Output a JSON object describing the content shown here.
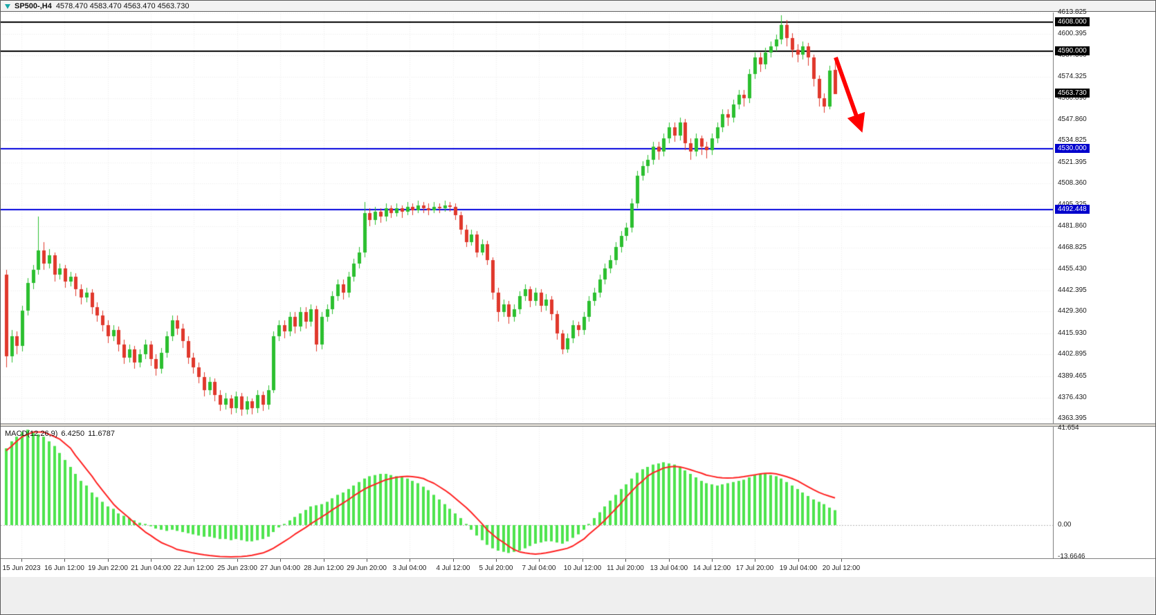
{
  "window": {
    "title_symbol": "SP500-,H4",
    "title_quotes": "4578.470 4583.470 4563.470 4563.730"
  },
  "indicator": {
    "name": "MACD(12,26,9)",
    "main_value": "6.4250",
    "signal_value": "11.6787"
  },
  "colors": {
    "up": "#2bbf2f",
    "down": "#e0382c",
    "histogram": "#4ee44e",
    "signal_line": "#ff2222",
    "grid": "#ececec",
    "zero_line": "#b5b5b5",
    "level_black": "#000000",
    "level_blue": "#0000dd",
    "badge_black": "#000000",
    "badge_blue": "#0000cc",
    "arrow": "#ff0000"
  },
  "price_axis": {
    "labels": [
      "4613.825",
      "4600.395",
      "4587.360",
      "4574.325",
      "4560.890",
      "4547.860",
      "4534.825",
      "4521.395",
      "4508.360",
      "4495.325",
      "4481.860",
      "4468.825",
      "4455.430",
      "4442.395",
      "4429.360",
      "4415.930",
      "4402.895",
      "4389.465",
      "4376.430",
      "4363.395"
    ],
    "badges": [
      {
        "label": "4608.000",
        "price": 4608.0,
        "type": "level"
      },
      {
        "label": "4590.000",
        "price": 4590.0,
        "type": "level"
      },
      {
        "label": "4563.730",
        "price": 4563.73,
        "type": "current"
      },
      {
        "label": "4530.000",
        "price": 4530.0,
        "type": "blue-level"
      },
      {
        "label": "4492.448",
        "price": 4492.448,
        "type": "blue-level"
      }
    ]
  },
  "macd_axis": {
    "labels": [
      {
        "text": "41.654",
        "value": 41.654
      },
      {
        "text": "0.00",
        "value": 0
      },
      {
        "text": "-13.6646",
        "value": -13.6646
      }
    ]
  },
  "time_axis": {
    "labels": [
      "15 Jun 2023",
      "16 Jun 12:00",
      "19 Jun 22:00",
      "21 Jun 04:00",
      "22 Jun 12:00",
      "25 Jun 23:00",
      "27 Jun 04:00",
      "28 Jun 12:00",
      "29 Jun 20:00",
      "3 Jul 04:00",
      "4 Jul 12:00",
      "5 Jul 20:00",
      "7 Jul 04:00",
      "10 Jul 12:00",
      "11 Jul 20:00",
      "13 Jul 04:00",
      "14 Jul 12:00",
      "17 Jul 20:00",
      "19 Jul 04:00",
      "20 Jul 12:00"
    ]
  },
  "chart_data": {
    "type": "candlestick",
    "symbol": "SP500-",
    "timeframe": "H4",
    "price_range": [
      4363.395,
      4613.825
    ],
    "current_price": 4563.73,
    "levels": [
      {
        "price": 4608.0,
        "color": "black"
      },
      {
        "price": 4590.0,
        "color": "black"
      },
      {
        "price": 4530.0,
        "color": "blue"
      },
      {
        "price": 4492.448,
        "color": "blue"
      }
    ],
    "annotation_arrow": {
      "direction": "down-right",
      "color": "#ff0000",
      "meaning": "projected decline"
    },
    "candles_ohlc": [
      [
        4452,
        4455,
        4395,
        4402
      ],
      [
        4402,
        4418,
        4398,
        4414
      ],
      [
        4414,
        4417,
        4403,
        4408
      ],
      [
        4408,
        4433,
        4405,
        4430
      ],
      [
        4430,
        4450,
        4427,
        4447
      ],
      [
        4447,
        4458,
        4443,
        4455
      ],
      [
        4455,
        4488,
        4452,
        4467
      ],
      [
        4467,
        4472,
        4455,
        4459
      ],
      [
        4459,
        4468,
        4456,
        4464
      ],
      [
        4464,
        4466,
        4448,
        4452
      ],
      [
        4452,
        4459,
        4449,
        4456
      ],
      [
        4456,
        4458,
        4444,
        4448
      ],
      [
        4448,
        4454,
        4445,
        4451
      ],
      [
        4451,
        4453,
        4439,
        4443
      ],
      [
        4443,
        4446,
        4434,
        4438
      ],
      [
        4438,
        4444,
        4435,
        4441
      ],
      [
        4441,
        4443,
        4428,
        4432
      ],
      [
        4432,
        4435,
        4423,
        4427
      ],
      [
        4427,
        4430,
        4417,
        4421
      ],
      [
        4421,
        4424,
        4410,
        4414
      ],
      [
        4414,
        4421,
        4411,
        4418
      ],
      [
        4418,
        4420,
        4405,
        4409
      ],
      [
        4409,
        4412,
        4397,
        4401
      ],
      [
        4401,
        4409,
        4398,
        4406
      ],
      [
        4406,
        4408,
        4394,
        4398
      ],
      [
        4398,
        4406,
        4395,
        4403
      ],
      [
        4403,
        4412,
        4400,
        4409
      ],
      [
        4409,
        4411,
        4396,
        4400
      ],
      [
        4400,
        4403,
        4390,
        4394
      ],
      [
        4394,
        4407,
        4391,
        4404
      ],
      [
        4404,
        4417,
        4401,
        4414
      ],
      [
        4414,
        4427,
        4411,
        4424
      ],
      [
        4424,
        4427,
        4415,
        4419
      ],
      [
        4419,
        4422,
        4407,
        4411
      ],
      [
        4411,
        4414,
        4397,
        4401
      ],
      [
        4401,
        4404,
        4391,
        4395
      ],
      [
        4395,
        4398,
        4385,
        4389
      ],
      [
        4389,
        4392,
        4377,
        4381
      ],
      [
        4381,
        4389,
        4378,
        4386
      ],
      [
        4386,
        4388,
        4374,
        4378
      ],
      [
        4378,
        4381,
        4368,
        4372
      ],
      [
        4372,
        4379,
        4369,
        4376
      ],
      [
        4376,
        4378,
        4366,
        4370
      ],
      [
        4370,
        4380,
        4367,
        4377
      ],
      [
        4377,
        4379,
        4365,
        4369
      ],
      [
        4369,
        4377,
        4366,
        4374
      ],
      [
        4374,
        4376,
        4366,
        4370
      ],
      [
        4370,
        4381,
        4367,
        4378
      ],
      [
        4378,
        4380,
        4368,
        4372
      ],
      [
        4372,
        4384,
        4369,
        4381
      ],
      [
        4381,
        4417,
        4379,
        4414
      ],
      [
        4414,
        4424,
        4411,
        4421
      ],
      [
        4421,
        4424,
        4413,
        4417
      ],
      [
        4417,
        4429,
        4414,
        4426
      ],
      [
        4426,
        4429,
        4416,
        4420
      ],
      [
        4420,
        4432,
        4417,
        4429
      ],
      [
        4429,
        4432,
        4419,
        4423
      ],
      [
        4423,
        4434,
        4420,
        4431
      ],
      [
        4431,
        4433,
        4405,
        4409
      ],
      [
        4409,
        4429,
        4406,
        4426
      ],
      [
        4426,
        4434,
        4423,
        4431
      ],
      [
        4431,
        4442,
        4428,
        4439
      ],
      [
        4439,
        4449,
        4436,
        4446
      ],
      [
        4446,
        4449,
        4437,
        4441
      ],
      [
        4441,
        4454,
        4438,
        4451
      ],
      [
        4451,
        4462,
        4448,
        4459
      ],
      [
        4459,
        4469,
        4456,
        4466
      ],
      [
        4466,
        4497,
        4463,
        4490
      ],
      [
        4490,
        4493,
        4482,
        4486
      ],
      [
        4486,
        4494,
        4483,
        4491
      ],
      [
        4491,
        4493,
        4484,
        4488
      ],
      [
        4488,
        4496,
        4485,
        4493
      ],
      [
        4493,
        4495,
        4487,
        4490
      ],
      [
        4490,
        4496,
        4488,
        4493
      ],
      [
        4493,
        4495,
        4487,
        4491
      ],
      [
        4491,
        4497,
        4489,
        4494
      ],
      [
        4494,
        4496,
        4489,
        4492
      ],
      [
        4492,
        4498,
        4490,
        4495
      ],
      [
        4495,
        4497,
        4490,
        4493
      ],
      [
        4493,
        4496,
        4489,
        4492
      ],
      [
        4492,
        4497,
        4490,
        4494
      ],
      [
        4494,
        4496,
        4490,
        4493
      ],
      [
        4493,
        4498,
        4491,
        4495
      ],
      [
        4495,
        4497,
        4491,
        4494
      ],
      [
        4494,
        4496,
        4486,
        4489
      ],
      [
        4489,
        4491,
        4477,
        4480
      ],
      [
        4480,
        4483,
        4469,
        4472
      ],
      [
        4472,
        4480,
        4470,
        4477
      ],
      [
        4477,
        4479,
        4463,
        4466
      ],
      [
        4466,
        4474,
        4464,
        4471
      ],
      [
        4471,
        4473,
        4458,
        4461
      ],
      [
        4461,
        4463,
        4437,
        4441
      ],
      [
        4441,
        4444,
        4423,
        4429
      ],
      [
        4429,
        4437,
        4426,
        4434
      ],
      [
        4434,
        4436,
        4422,
        4426
      ],
      [
        4426,
        4434,
        4423,
        4431
      ],
      [
        4431,
        4442,
        4428,
        4439
      ],
      [
        4439,
        4446,
        4436,
        4443
      ],
      [
        4443,
        4445,
        4432,
        4436
      ],
      [
        4436,
        4444,
        4433,
        4441
      ],
      [
        4441,
        4443,
        4429,
        4433
      ],
      [
        4433,
        4440,
        4430,
        4437
      ],
      [
        4437,
        4439,
        4424,
        4428
      ],
      [
        4428,
        4430,
        4412,
        4416
      ],
      [
        4416,
        4418,
        4403,
        4406
      ],
      [
        4406,
        4416,
        4404,
        4413
      ],
      [
        4413,
        4424,
        4410,
        4421
      ],
      [
        4421,
        4423,
        4414,
        4418
      ],
      [
        4418,
        4429,
        4415,
        4426
      ],
      [
        4426,
        4439,
        4423,
        4436
      ],
      [
        4436,
        4444,
        4433,
        4441
      ],
      [
        4441,
        4452,
        4438,
        4449
      ],
      [
        4449,
        4459,
        4446,
        4456
      ],
      [
        4456,
        4464,
        4453,
        4461
      ],
      [
        4461,
        4472,
        4458,
        4469
      ],
      [
        4469,
        4479,
        4466,
        4476
      ],
      [
        4476,
        4484,
        4473,
        4481
      ],
      [
        4481,
        4499,
        4478,
        4496
      ],
      [
        4496,
        4516,
        4493,
        4513
      ],
      [
        4513,
        4522,
        4510,
        4519
      ],
      [
        4519,
        4526,
        4515,
        4523
      ],
      [
        4523,
        4534,
        4520,
        4531
      ],
      [
        4531,
        4534,
        4523,
        4528
      ],
      [
        4528,
        4539,
        4525,
        4536
      ],
      [
        4536,
        4546,
        4533,
        4543
      ],
      [
        4543,
        4546,
        4534,
        4538
      ],
      [
        4538,
        4549,
        4535,
        4546
      ],
      [
        4546,
        4548,
        4529,
        4533
      ],
      [
        4533,
        4536,
        4523,
        4528
      ],
      [
        4528,
        4539,
        4525,
        4536
      ],
      [
        4536,
        4538,
        4526,
        4531
      ],
      [
        4531,
        4534,
        4524,
        4529
      ],
      [
        4529,
        4539,
        4526,
        4536
      ],
      [
        4536,
        4546,
        4533,
        4543
      ],
      [
        4543,
        4554,
        4540,
        4551
      ],
      [
        4551,
        4554,
        4544,
        4549
      ],
      [
        4549,
        4560,
        4546,
        4557
      ],
      [
        4557,
        4566,
        4554,
        4563
      ],
      [
        4563,
        4566,
        4556,
        4561
      ],
      [
        4561,
        4579,
        4558,
        4576
      ],
      [
        4576,
        4589,
        4573,
        4586
      ],
      [
        4586,
        4589,
        4577,
        4582
      ],
      [
        4582,
        4592,
        4579,
        4589
      ],
      [
        4589,
        4596,
        4586,
        4593
      ],
      [
        4593,
        4600,
        4590,
        4597
      ],
      [
        4597,
        4612,
        4594,
        4606
      ],
      [
        4606,
        4609,
        4593,
        4598
      ],
      [
        4598,
        4601,
        4586,
        4591
      ],
      [
        4591,
        4594,
        4583,
        4588
      ],
      [
        4588,
        4596,
        4585,
        4593
      ],
      [
        4593,
        4595,
        4581,
        4586
      ],
      [
        4586,
        4588,
        4568,
        4573
      ],
      [
        4573,
        4575,
        4556,
        4561
      ],
      [
        4561,
        4564,
        4552,
        4556
      ],
      [
        4556,
        4581,
        4554,
        4578
      ],
      [
        4578.5,
        4583.5,
        4563.5,
        4563.7
      ]
    ],
    "indicator": {
      "type": "MACD",
      "params": [
        12,
        26,
        9
      ],
      "range": [
        -13.6646,
        41.654
      ],
      "histogram": [
        33,
        36,
        38,
        40,
        41,
        40,
        39,
        38,
        36,
        34,
        31,
        28,
        25,
        22,
        19,
        17,
        14,
        12,
        10,
        8,
        7,
        5,
        4,
        3,
        2,
        1,
        0.5,
        -0.5,
        -1.5,
        -2,
        -2.5,
        -2,
        -2.5,
        -3,
        -3.5,
        -4,
        -4.5,
        -5,
        -5,
        -5.5,
        -6,
        -6,
        -6.5,
        -6,
        -6.5,
        -7,
        -7,
        -6.5,
        -6,
        -5,
        -3,
        -1,
        0.5,
        2,
        3.5,
        5,
        6.5,
        8,
        8.5,
        9,
        10,
        11.5,
        13,
        14,
        15.5,
        17,
        18.5,
        20,
        21,
        21.5,
        22,
        22,
        21.5,
        21,
        20.5,
        20,
        19,
        18,
        16.5,
        15,
        13,
        11,
        9,
        7,
        5,
        3,
        0.5,
        -2,
        -4.5,
        -6.5,
        -8.5,
        -10,
        -11,
        -11.5,
        -12,
        -11.5,
        -11,
        -10,
        -9,
        -8,
        -7.5,
        -7,
        -7,
        -7.5,
        -8,
        -7,
        -5.5,
        -4,
        -2,
        0.5,
        3,
        5.5,
        8,
        10.5,
        13,
        15.5,
        17.5,
        20,
        22.5,
        24,
        25,
        26,
        26.5,
        27,
        26.5,
        26,
        25,
        23.5,
        22,
        20.5,
        19,
        18,
        17.5,
        17,
        17.5,
        18,
        18.5,
        19,
        19.5,
        20.5,
        21.5,
        22,
        22,
        21.5,
        21,
        20,
        18.5,
        17,
        15.5,
        14,
        12.5,
        11,
        10,
        9,
        7.5,
        6.4
      ],
      "signal": [
        32,
        34,
        36,
        38,
        39,
        40,
        40,
        40,
        39,
        38,
        37,
        35,
        33,
        30,
        27,
        24,
        21,
        18,
        15,
        12,
        9,
        7,
        5,
        3,
        1,
        -1,
        -3,
        -4.5,
        -6,
        -7.5,
        -8.5,
        -9.5,
        -10.5,
        -11,
        -11.5,
        -12,
        -12.4,
        -12.8,
        -13.1,
        -13.3,
        -13.5,
        -13.6,
        -13.66,
        -13.6,
        -13.5,
        -13.3,
        -13,
        -12.5,
        -12,
        -11,
        -10,
        -8.5,
        -7,
        -5.5,
        -4,
        -2.5,
        -1,
        0.5,
        2,
        3.5,
        5,
        6.5,
        8,
        9.5,
        11,
        12.5,
        14,
        15.5,
        16.5,
        17.5,
        18.5,
        19.5,
        20,
        20.5,
        20.8,
        21,
        20.8,
        20.5,
        20,
        19,
        18,
        16.5,
        15,
        13.5,
        11.5,
        9.5,
        7.5,
        5.5,
        3,
        0.5,
        -2,
        -4,
        -6,
        -7.5,
        -9,
        -10.5,
        -11.5,
        -12,
        -12.3,
        -12.5,
        -12.3,
        -12,
        -11.5,
        -11,
        -10.5,
        -10,
        -9,
        -7.5,
        -6,
        -4,
        -2,
        0,
        2,
        4.5,
        7,
        9.5,
        12,
        14.5,
        17,
        19,
        21,
        22.5,
        23.5,
        24.5,
        25,
        25.2,
        25,
        24.5,
        23.8,
        23,
        22.3,
        21.5,
        21,
        20.5,
        20.3,
        20.2,
        20.3,
        20.5,
        20.8,
        21.2,
        21.6,
        22,
        22.2,
        22.3,
        22,
        21.5,
        20.8,
        20,
        19,
        17.8,
        16.5,
        15.2,
        14,
        13.2,
        12.4,
        11.68
      ]
    }
  }
}
